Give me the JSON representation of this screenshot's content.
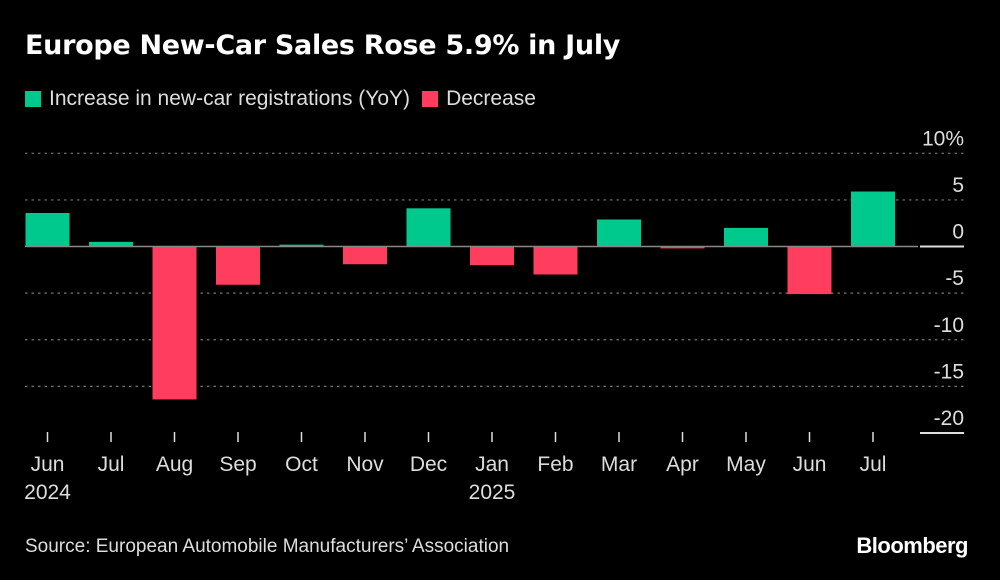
{
  "title": "Europe New-Car Sales Rose 5.9% in July",
  "legend": [
    {
      "label": "Increase in new-car registrations (YoY)",
      "color": "#00c98d"
    },
    {
      "label": "Decrease",
      "color": "#ff3d5f"
    }
  ],
  "source": "Source: European Automobile Manufacturers’ Association",
  "logo": "Bloomberg",
  "chart_data": {
    "type": "bar",
    "title": "Europe New-Car Sales Rose 5.9% in July",
    "categories": [
      "Jun",
      "Jul",
      "Aug",
      "Sep",
      "Oct",
      "Nov",
      "Dec",
      "Jan",
      "Feb",
      "Mar",
      "Apr",
      "May",
      "Jun",
      "Jul"
    ],
    "year_labels": {
      "0": "2024",
      "7": "2025"
    },
    "values": [
      3.6,
      0.5,
      -16.4,
      -4.1,
      0.2,
      -1.9,
      4.1,
      -2.0,
      -3.0,
      2.9,
      -0.2,
      2.0,
      -5.1,
      5.9
    ],
    "ylim": [
      -20,
      10
    ],
    "yticks": [
      10,
      5,
      0,
      -5,
      -10,
      -15,
      -20
    ],
    "ytick_labels": [
      "10%",
      "5",
      "0",
      "-5",
      "-10",
      "-15",
      "-20"
    ],
    "y_axis_position": "right",
    "grid": true,
    "legend_position": "top-left",
    "colors": {
      "positive": "#00c98d",
      "negative": "#ff3d5f"
    }
  }
}
